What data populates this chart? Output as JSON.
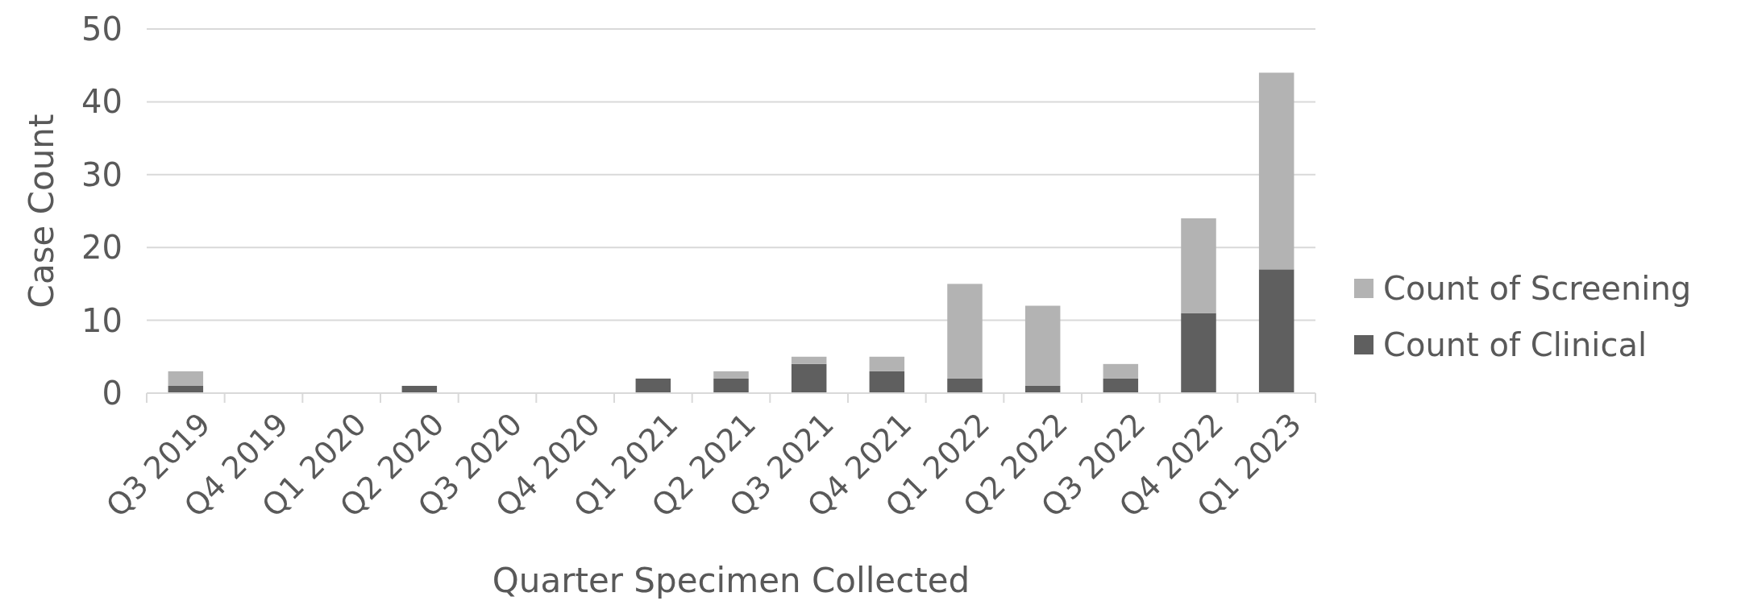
{
  "chart_data": {
    "type": "bar",
    "stacked": true,
    "xlabel": "Quarter Specimen Collected",
    "ylabel": "Case Count",
    "categories": [
      "Q3 2019",
      "Q4 2019",
      "Q1 2020",
      "Q2 2020",
      "Q3 2020",
      "Q4 2020",
      "Q1 2021",
      "Q2 2021",
      "Q3 2021",
      "Q4 2021",
      "Q1 2022",
      "Q2 2022",
      "Q3 2022",
      "Q4 2022",
      "Q1 2023"
    ],
    "series": [
      {
        "name": "Count of Clinical",
        "color": "#5f5f5f",
        "values": [
          1,
          0,
          0,
          1,
          0,
          0,
          2,
          2,
          4,
          3,
          2,
          1,
          2,
          11,
          17
        ]
      },
      {
        "name": "Count of Screening",
        "color": "#b3b3b3",
        "values": [
          2,
          0,
          0,
          0,
          0,
          0,
          0,
          1,
          1,
          2,
          13,
          11,
          2,
          13,
          27
        ]
      }
    ],
    "ylim": [
      0,
      50
    ],
    "yticks": [
      0,
      10,
      20,
      30,
      40,
      50
    ],
    "grid": "y",
    "legend": "right"
  }
}
